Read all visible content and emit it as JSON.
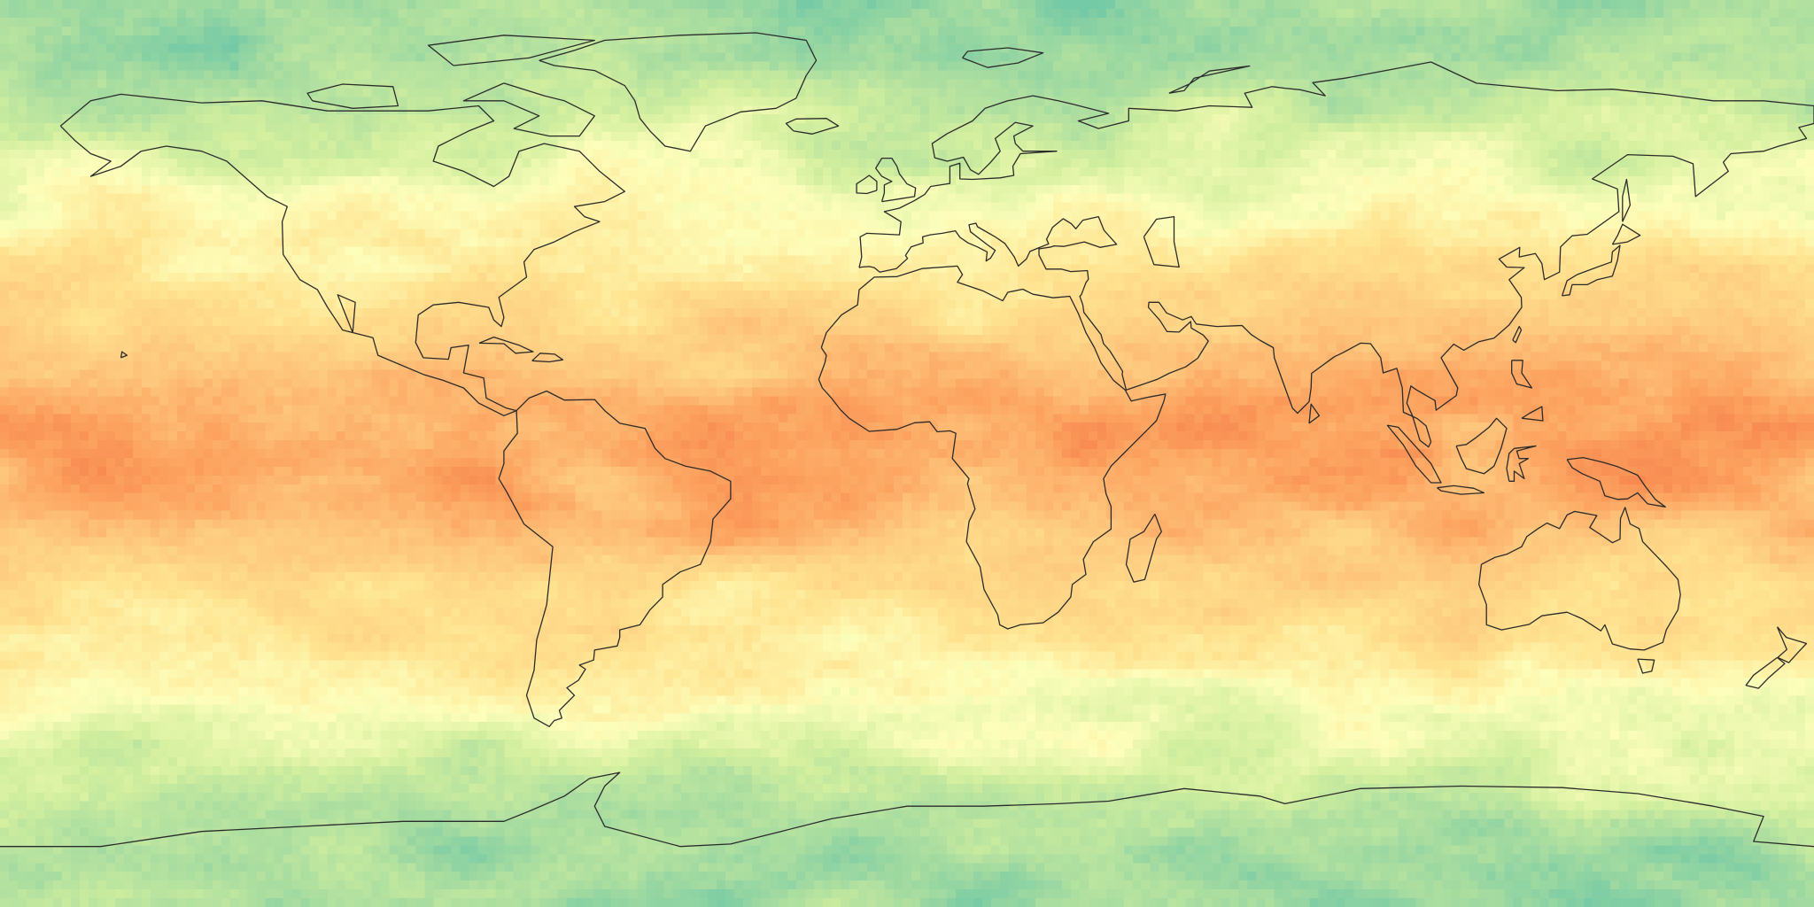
{
  "map": {
    "projection": "equirectangular",
    "center_longitude": 0,
    "coastline_color": "#2b2b2b",
    "colormap": [
      "#74c9a6",
      "#a8dca0",
      "#d4ef9f",
      "#fdfebb",
      "#fee28f",
      "#fdc77d",
      "#fca25f",
      "#f47a48"
    ],
    "landmasses": [
      "north-america",
      "south-america",
      "africa",
      "eurasia",
      "australia",
      "antarctica",
      "greenland",
      "great-britain",
      "ireland",
      "madagascar",
      "japan",
      "new-zealand",
      "maritime-asia-islands",
      "caribbean-islands",
      "iceland",
      "arctic-islands"
    ]
  }
}
